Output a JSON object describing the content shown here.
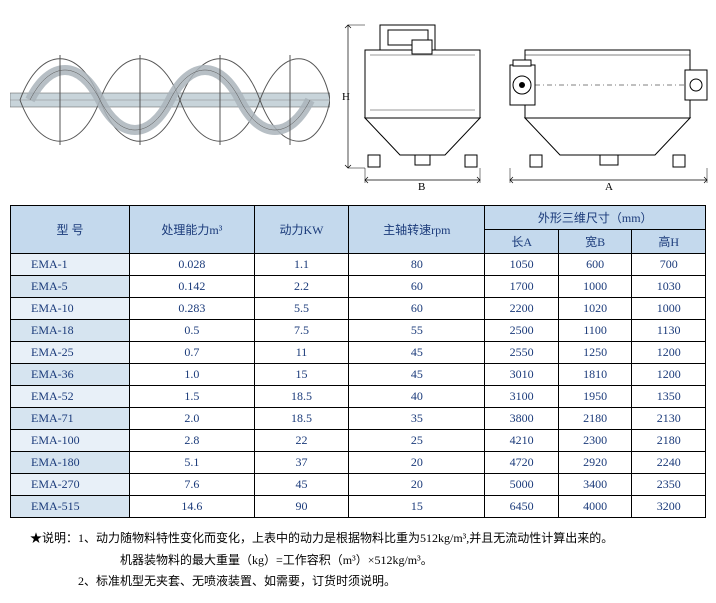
{
  "table": {
    "headers": {
      "model": "型  号",
      "capacity": "处理能力m³",
      "power": "动力KW",
      "rpm": "主轴转速rpm",
      "dimensions": "外形三维尺寸（mm）",
      "lengthA": "长A",
      "widthB": "宽B",
      "heightH": "高H"
    },
    "rows": [
      {
        "model": "EMA-1",
        "capacity": "0.028",
        "power": "1.1",
        "rpm": "80",
        "A": "1050",
        "B": "600",
        "H": "700"
      },
      {
        "model": "EMA-5",
        "capacity": "0.142",
        "power": "2.2",
        "rpm": "60",
        "A": "1700",
        "B": "1000",
        "H": "1030"
      },
      {
        "model": "EMA-10",
        "capacity": "0.283",
        "power": "5.5",
        "rpm": "60",
        "A": "2200",
        "B": "1020",
        "H": "1000"
      },
      {
        "model": "EMA-18",
        "capacity": "0.5",
        "power": "7.5",
        "rpm": "55",
        "A": "2500",
        "B": "1100",
        "H": "1130"
      },
      {
        "model": "EMA-25",
        "capacity": "0.7",
        "power": "11",
        "rpm": "45",
        "A": "2550",
        "B": "1250",
        "H": "1200"
      },
      {
        "model": "EMA-36",
        "capacity": "1.0",
        "power": "15",
        "rpm": "45",
        "A": "3010",
        "B": "1810",
        "H": "1200"
      },
      {
        "model": "EMA-52",
        "capacity": "1.5",
        "power": "18.5",
        "rpm": "40",
        "A": "3100",
        "B": "1950",
        "H": "1350"
      },
      {
        "model": "EMA-71",
        "capacity": "2.0",
        "power": "18.5",
        "rpm": "35",
        "A": "3800",
        "B": "2180",
        "H": "2130"
      },
      {
        "model": "EMA-100",
        "capacity": "2.8",
        "power": "22",
        "rpm": "25",
        "A": "4210",
        "B": "2300",
        "H": "2180"
      },
      {
        "model": "EMA-180",
        "capacity": "5.1",
        "power": "37",
        "rpm": "20",
        "A": "4720",
        "B": "2920",
        "H": "2240"
      },
      {
        "model": "EMA-270",
        "capacity": "7.6",
        "power": "45",
        "rpm": "20",
        "A": "5000",
        "B": "3400",
        "H": "2350"
      },
      {
        "model": "EMA-515",
        "capacity": "14.6",
        "power": "90",
        "rpm": "15",
        "A": "6450",
        "B": "4000",
        "H": "3200"
      }
    ]
  },
  "notes": {
    "line1": "★说明：1、动力随物料特性变化而变化，上表中的动力是根据物料比重为512kg/m³,并且无流动性计算出来的。",
    "line2": "机器装物料的最大重量（kg）=工作容积（m³）×512kg/m³。",
    "line3": "2、标准机型无夹套、无喷液装置、如需要，订货时须说明。"
  },
  "labels": {
    "H": "H",
    "B": "B",
    "A": "A"
  },
  "colors": {
    "header_bg": "#c4d9ed",
    "text": "#1a3a7a",
    "row_alt_bg": "#e8f0f8",
    "border": "#000000"
  }
}
